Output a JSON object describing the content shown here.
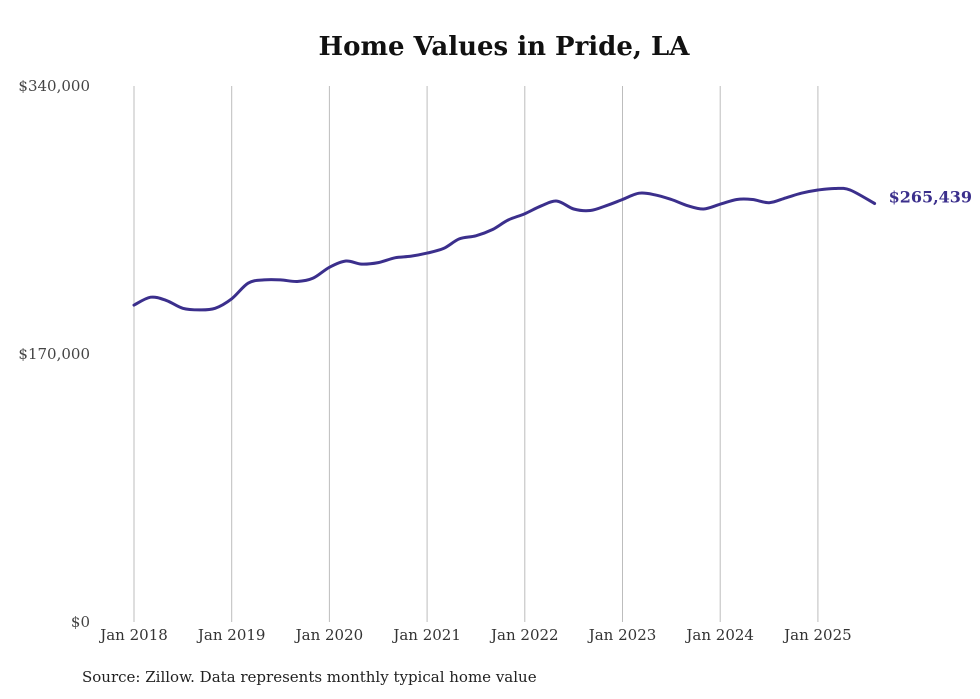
{
  "chart_data": {
    "type": "line",
    "title": "Home Values in Pride, LA",
    "xlabel": "",
    "ylabel": "",
    "ylim": [
      0,
      340000
    ],
    "y_ticks": [
      "$0",
      "$170,000",
      "$340,000"
    ],
    "y_tick_values": [
      0,
      170000,
      340000
    ],
    "x_ticks": [
      "Jan 2018",
      "Jan 2019",
      "Jan 2020",
      "Jan 2021",
      "Jan 2022",
      "Jan 2023",
      "Jan 2024",
      "Jan 2025"
    ],
    "grid": "vertical",
    "end_label": "$265,439",
    "series": [
      {
        "color": "#3b2f8c",
        "x": [
          2018.0,
          2018.17,
          2018.33,
          2018.5,
          2018.67,
          2018.83,
          2019.0,
          2019.17,
          2019.33,
          2019.5,
          2019.67,
          2019.83,
          2020.0,
          2020.17,
          2020.33,
          2020.5,
          2020.67,
          2020.83,
          2021.0,
          2021.17,
          2021.33,
          2021.5,
          2021.67,
          2021.83,
          2022.0,
          2022.17,
          2022.33,
          2022.5,
          2022.67,
          2022.83,
          2023.0,
          2023.17,
          2023.33,
          2023.5,
          2023.67,
          2023.83,
          2024.0,
          2024.17,
          2024.33,
          2024.5,
          2024.67,
          2024.83,
          2025.0,
          2025.17,
          2025.33,
          2025.58
        ],
        "values": [
          201000,
          206000,
          204000,
          199000,
          198000,
          199000,
          205000,
          215000,
          217000,
          217000,
          216000,
          218000,
          225000,
          229000,
          227000,
          228000,
          231000,
          232000,
          234000,
          237000,
          243000,
          245000,
          249000,
          255000,
          259000,
          264000,
          267000,
          262000,
          261000,
          264000,
          268000,
          272000,
          271000,
          268000,
          264000,
          262000,
          265000,
          268000,
          268000,
          266000,
          269000,
          272000,
          274000,
          275000,
          274000,
          265439
        ]
      }
    ]
  },
  "footer": {
    "source": "Source: Zillow. Data represents monthly typical home value"
  }
}
